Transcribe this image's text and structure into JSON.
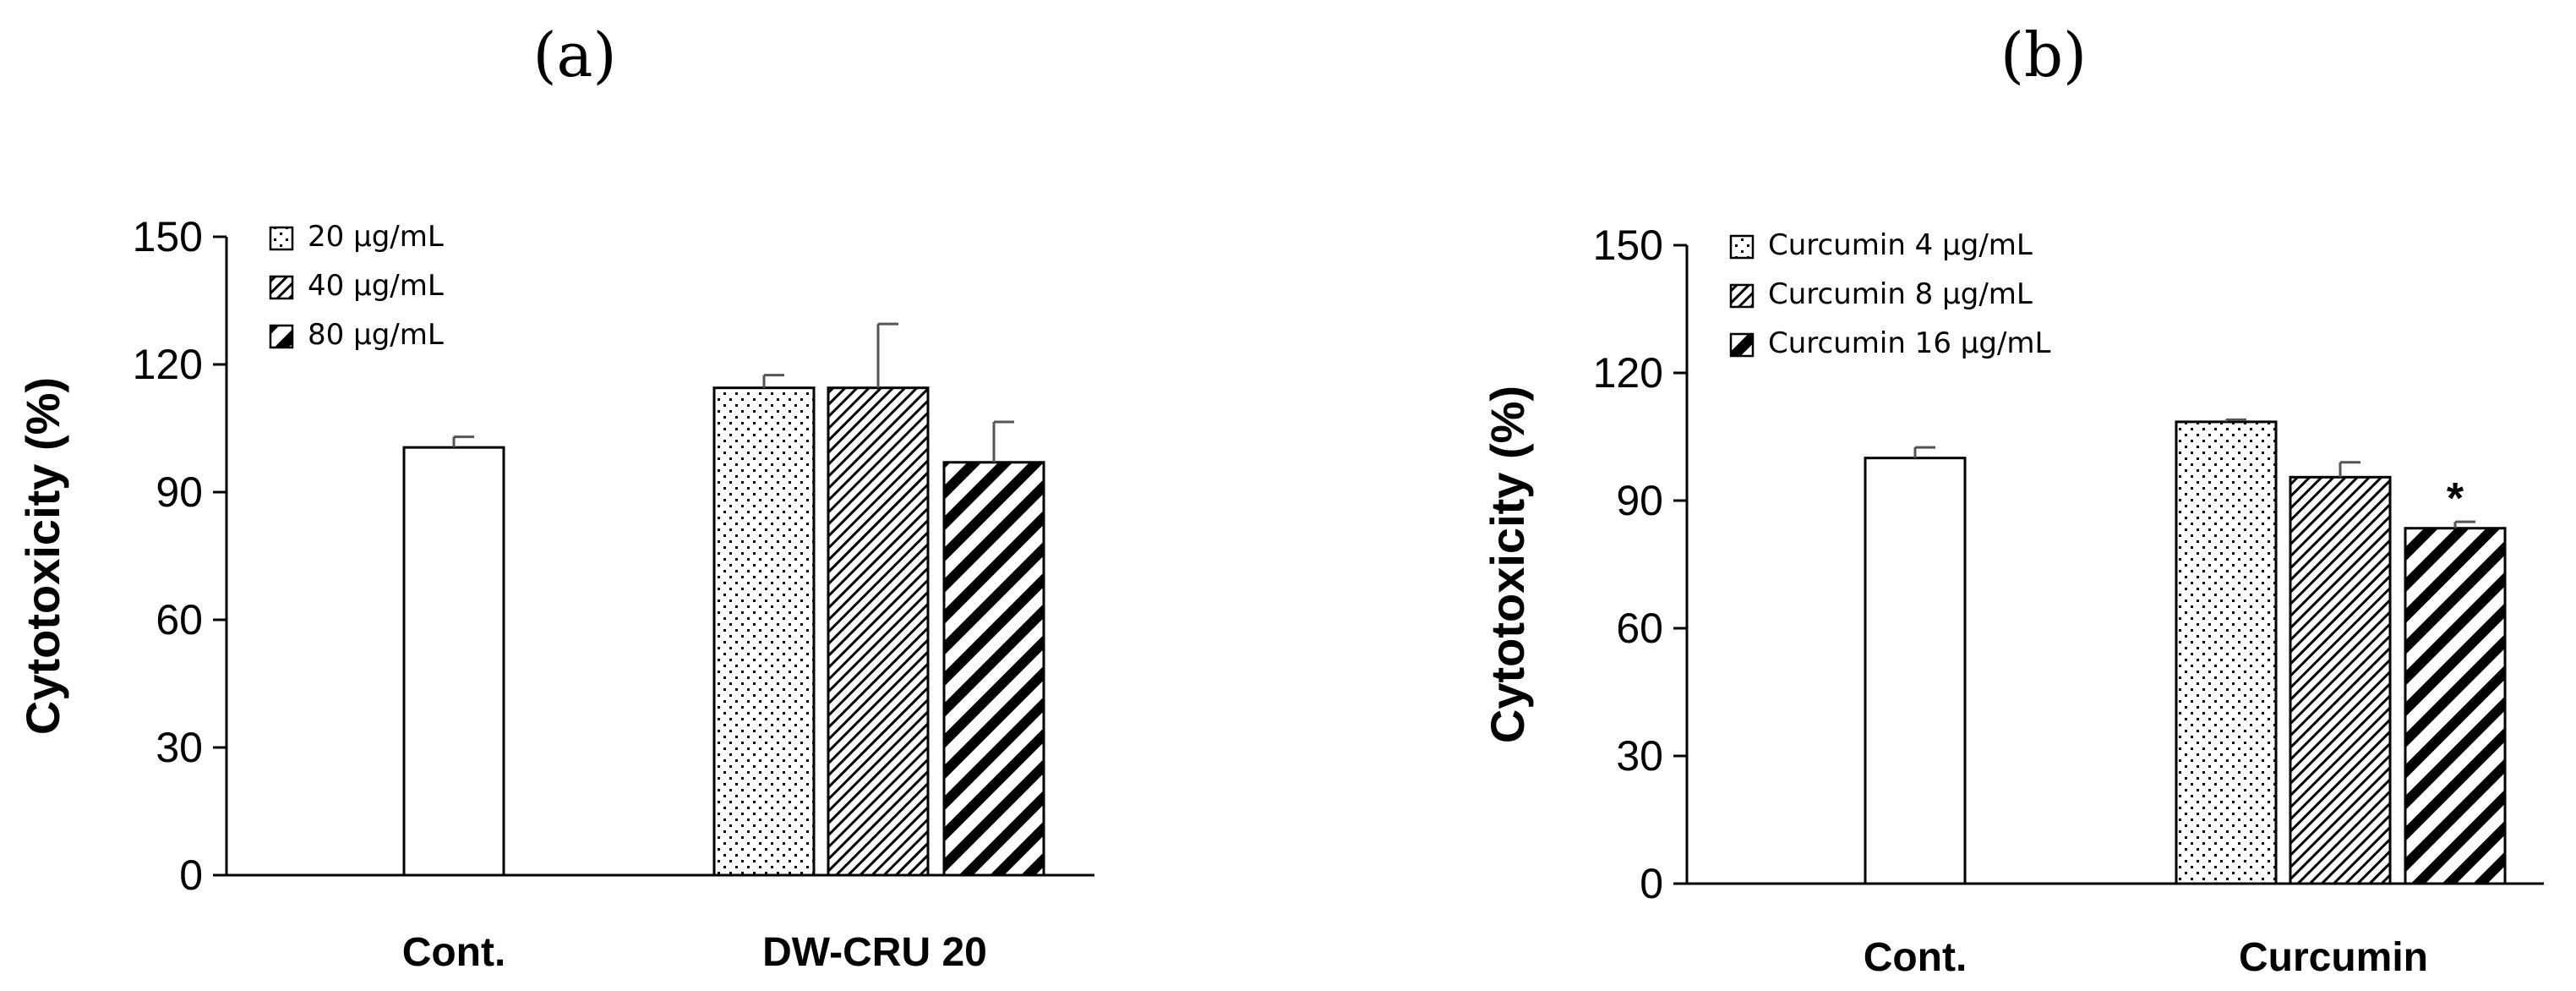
{
  "chart_data": [
    {
      "type": "bar",
      "panel_label": "(a)",
      "ylabel": "Cytotoxicity  (%)",
      "ylim": [
        0,
        150
      ],
      "yticks": [
        0,
        30,
        60,
        90,
        120,
        150
      ],
      "categories": [
        "Cont.",
        "DW-CRU 20"
      ],
      "legend_position": "top-left",
      "series": [
        {
          "group": "Cont.",
          "value": 100.5,
          "error": 2.5,
          "pattern": "none",
          "significant": false
        },
        {
          "group": "DW-CRU 20",
          "name": "20 μg/mL",
          "value": 114.5,
          "error": 3.0,
          "pattern": "dots",
          "significant": false
        },
        {
          "group": "DW-CRU 20",
          "name": "40 μg/mL",
          "value": 114.5,
          "error": 15.0,
          "pattern": "fine-diagonal",
          "significant": false
        },
        {
          "group": "DW-CRU 20",
          "name": "80 μg/mL",
          "value": 97.0,
          "error": 9.5,
          "pattern": "bold-diagonal",
          "significant": false
        }
      ]
    },
    {
      "type": "bar",
      "panel_label": "(b)",
      "ylabel": "Cytotoxicity  (%)",
      "ylim": [
        0,
        150
      ],
      "yticks": [
        0,
        30,
        60,
        90,
        120,
        150
      ],
      "categories": [
        "Cont.",
        "Curcumin"
      ],
      "legend_position": "top-left",
      "series": [
        {
          "group": "Cont.",
          "value": 100.0,
          "error": 2.5,
          "pattern": "none",
          "significant": false
        },
        {
          "group": "Curcumin",
          "name": "Curcumin 4 μg/mL",
          "value": 108.5,
          "error": 0.5,
          "pattern": "dots",
          "significant": false
        },
        {
          "group": "Curcumin",
          "name": "Curcumin 8 μg/mL",
          "value": 95.5,
          "error": 3.5,
          "pattern": "fine-diagonal",
          "significant": false
        },
        {
          "group": "Curcumin",
          "name": "Curcumin 16 μg/mL",
          "value": 83.5,
          "error": 1.5,
          "pattern": "bold-diagonal",
          "significant": true,
          "marker": "*"
        }
      ]
    }
  ]
}
